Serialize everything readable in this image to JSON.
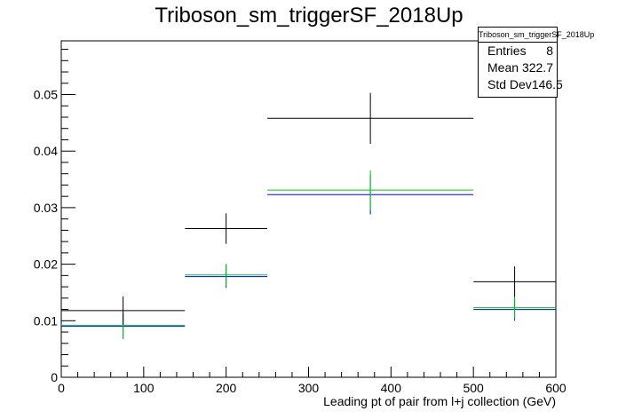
{
  "title": "Triboson_sm_triggerSF_2018Up",
  "statbox": {
    "name": "Triboson_sm_triggerSF_2018Up",
    "rows": [
      {
        "label": "Entries",
        "value": "8"
      },
      {
        "label": "Mean",
        "value": "322.7"
      },
      {
        "label": "Std Dev",
        "value": "146.5"
      }
    ]
  },
  "chart_data": {
    "type": "histogram",
    "title": "Triboson_sm_triggerSF_2018Up",
    "xlabel": "Leading pt of pair from l+j collection (GeV)",
    "ylabel": "",
    "xlim": [
      0,
      600
    ],
    "ylim": [
      0,
      0.0595
    ],
    "x_ticks": [
      0,
      100,
      200,
      300,
      400,
      500,
      600
    ],
    "x_tick_labels": [
      "0",
      "100",
      "200",
      "300",
      "400",
      "500",
      "600"
    ],
    "y_ticks": [
      0,
      0.01,
      0.02,
      0.03,
      0.04,
      0.05
    ],
    "y_tick_labels": [
      "0",
      "0.01",
      "0.02",
      "0.03",
      "0.04",
      "0.05"
    ],
    "grid": false,
    "legend": "statistics box top-right",
    "series": [
      {
        "color": "#000000",
        "bins": [
          {
            "xlow": 0,
            "xhigh": 150,
            "x": 75,
            "y": 0.0118,
            "err": 0.0025
          },
          {
            "xlow": 150,
            "xhigh": 250,
            "x": 200,
            "y": 0.0263,
            "err": 0.0027
          },
          {
            "xlow": 250,
            "xhigh": 500,
            "x": 375,
            "y": 0.0458,
            "err": 0.0045
          },
          {
            "xlow": 500,
            "xhigh": 600,
            "x": 550,
            "y": 0.0169,
            "err": 0.0027
          }
        ]
      },
      {
        "color": "#00cc00",
        "bins": [
          {
            "xlow": 0,
            "xhigh": 150,
            "x": 75,
            "y": 0.0092,
            "err": 0.0022
          },
          {
            "xlow": 150,
            "xhigh": 250,
            "x": 200,
            "y": 0.0181,
            "err": 0.002
          },
          {
            "xlow": 250,
            "xhigh": 500,
            "x": 375,
            "y": 0.0331,
            "err": 0.0035
          },
          {
            "xlow": 500,
            "xhigh": 600,
            "x": 550,
            "y": 0.0123,
            "err": 0.002
          }
        ]
      },
      {
        "color": "#0000ff",
        "bins": [
          {
            "xlow": 0,
            "xhigh": 150,
            "x": 75,
            "y": 0.009,
            "err": 0.0022
          },
          {
            "xlow": 150,
            "xhigh": 250,
            "x": 200,
            "y": 0.0178,
            "err": 0.002
          },
          {
            "xlow": 250,
            "xhigh": 500,
            "x": 375,
            "y": 0.0323,
            "err": 0.0035
          },
          {
            "xlow": 500,
            "xhigh": 600,
            "x": 550,
            "y": 0.012,
            "err": 0.002
          }
        ]
      }
    ],
    "draw_order": [
      2,
      1,
      0
    ]
  }
}
